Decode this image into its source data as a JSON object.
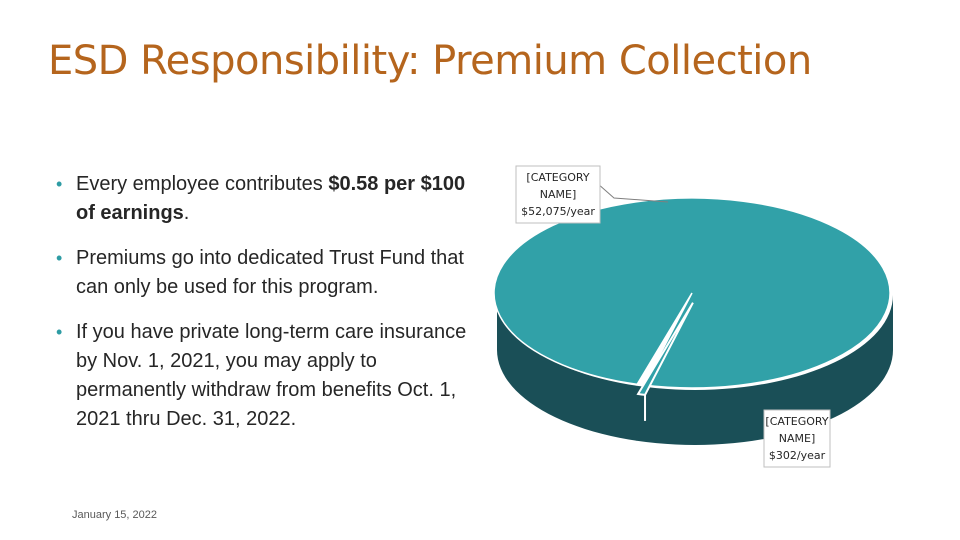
{
  "slide": {
    "title": "ESD Responsibility: Premium Collection",
    "footer_date": "January 15, 2022"
  },
  "bullets": [
    {
      "pre": "Every employee contributes ",
      "bold": "$0.58 per $100 of earnings",
      "post": "."
    },
    {
      "pre": "Premiums go into dedicated Trust Fund that can only be used for this program.",
      "bold": "",
      "post": ""
    },
    {
      "pre": "If you have private long-term care insurance by Nov. 1, 2021, you may apply to permanently withdraw from benefits Oct. 1, 2021 thru Dec. 31, 2022.",
      "bold": "",
      "post": ""
    }
  ],
  "colors": {
    "title": "#b5651d",
    "bullet_marker": "#2e9ca4",
    "pie_top": "#31a1a8",
    "pie_side": "#1a4f57"
  },
  "chart_data": {
    "type": "pie",
    "three_d": true,
    "title": "",
    "slices": [
      {
        "label_lines": [
          "[CATEGORY",
          "NAME]",
          "$52,075/year"
        ],
        "value": 52075
      },
      {
        "label_lines": [
          "[CATEGORY",
          "NAME]",
          "$302/year"
        ],
        "value": 302
      }
    ]
  }
}
